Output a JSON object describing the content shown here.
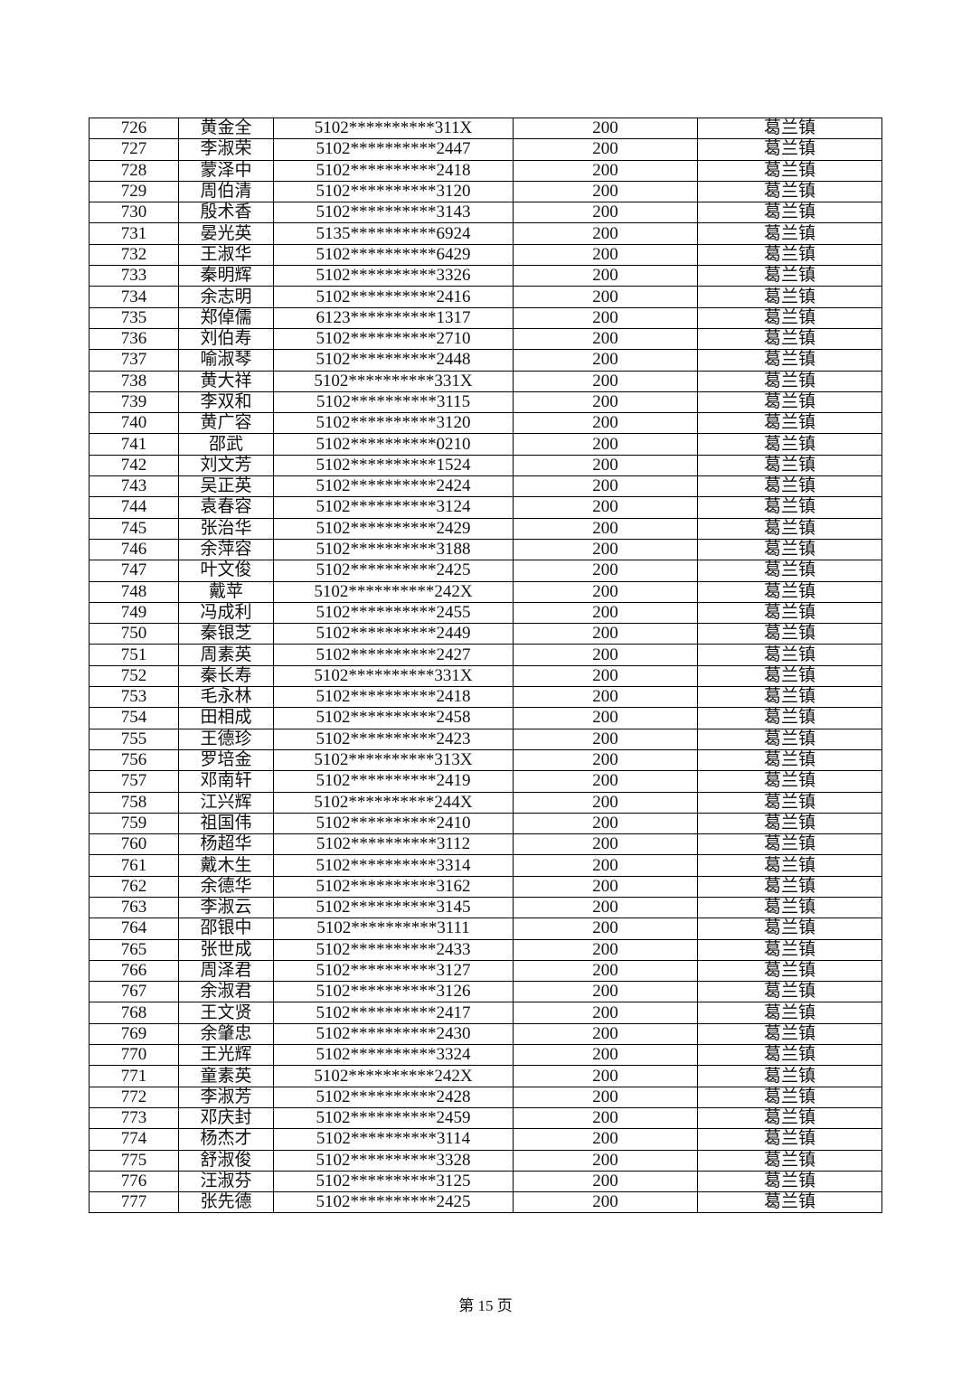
{
  "table": {
    "rows": [
      [
        "726",
        "黄金全",
        "5102**********311X",
        "200",
        "葛兰镇"
      ],
      [
        "727",
        "李淑荣",
        "5102**********2447",
        "200",
        "葛兰镇"
      ],
      [
        "728",
        "蒙泽中",
        "5102**********2418",
        "200",
        "葛兰镇"
      ],
      [
        "729",
        "周伯清",
        "5102**********3120",
        "200",
        "葛兰镇"
      ],
      [
        "730",
        "殷术香",
        "5102**********3143",
        "200",
        "葛兰镇"
      ],
      [
        "731",
        "晏光英",
        "5135**********6924",
        "200",
        "葛兰镇"
      ],
      [
        "732",
        "王淑华",
        "5102**********6429",
        "200",
        "葛兰镇"
      ],
      [
        "733",
        "秦明辉",
        "5102**********3326",
        "200",
        "葛兰镇"
      ],
      [
        "734",
        "余志明",
        "5102**********2416",
        "200",
        "葛兰镇"
      ],
      [
        "735",
        "郑倬儒",
        "6123**********1317",
        "200",
        "葛兰镇"
      ],
      [
        "736",
        "刘伯寿",
        "5102**********2710",
        "200",
        "葛兰镇"
      ],
      [
        "737",
        "喻淑琴",
        "5102**********2448",
        "200",
        "葛兰镇"
      ],
      [
        "738",
        "黄大祥",
        "5102**********331X",
        "200",
        "葛兰镇"
      ],
      [
        "739",
        "李双和",
        "5102**********3115",
        "200",
        "葛兰镇"
      ],
      [
        "740",
        "黄广容",
        "5102**********3120",
        "200",
        "葛兰镇"
      ],
      [
        "741",
        "邵武",
        "5102**********0210",
        "200",
        "葛兰镇"
      ],
      [
        "742",
        "刘文芳",
        "5102**********1524",
        "200",
        "葛兰镇"
      ],
      [
        "743",
        "吴正英",
        "5102**********2424",
        "200",
        "葛兰镇"
      ],
      [
        "744",
        "袁春容",
        "5102**********3124",
        "200",
        "葛兰镇"
      ],
      [
        "745",
        "张治华",
        "5102**********2429",
        "200",
        "葛兰镇"
      ],
      [
        "746",
        "余萍容",
        "5102**********3188",
        "200",
        "葛兰镇"
      ],
      [
        "747",
        "叶文俊",
        "5102**********2425",
        "200",
        "葛兰镇"
      ],
      [
        "748",
        "戴苹",
        "5102**********242X",
        "200",
        "葛兰镇"
      ],
      [
        "749",
        "冯成利",
        "5102**********2455",
        "200",
        "葛兰镇"
      ],
      [
        "750",
        "秦银芝",
        "5102**********2449",
        "200",
        "葛兰镇"
      ],
      [
        "751",
        "周素英",
        "5102**********2427",
        "200",
        "葛兰镇"
      ],
      [
        "752",
        "秦长寿",
        "5102**********331X",
        "200",
        "葛兰镇"
      ],
      [
        "753",
        "毛永林",
        "5102**********2418",
        "200",
        "葛兰镇"
      ],
      [
        "754",
        "田相成",
        "5102**********2458",
        "200",
        "葛兰镇"
      ],
      [
        "755",
        "王德珍",
        "5102**********2423",
        "200",
        "葛兰镇"
      ],
      [
        "756",
        "罗培金",
        "5102**********313X",
        "200",
        "葛兰镇"
      ],
      [
        "757",
        "邓南轩",
        "5102**********2419",
        "200",
        "葛兰镇"
      ],
      [
        "758",
        "江兴辉",
        "5102**********244X",
        "200",
        "葛兰镇"
      ],
      [
        "759",
        "祖国伟",
        "5102**********2410",
        "200",
        "葛兰镇"
      ],
      [
        "760",
        "杨超华",
        "5102**********3112",
        "200",
        "葛兰镇"
      ],
      [
        "761",
        "戴木生",
        "5102**********3314",
        "200",
        "葛兰镇"
      ],
      [
        "762",
        "余德华",
        "5102**********3162",
        "200",
        "葛兰镇"
      ],
      [
        "763",
        "李淑云",
        "5102**********3145",
        "200",
        "葛兰镇"
      ],
      [
        "764",
        "邵银中",
        "5102**********3111",
        "200",
        "葛兰镇"
      ],
      [
        "765",
        "张世成",
        "5102**********2433",
        "200",
        "葛兰镇"
      ],
      [
        "766",
        "周泽君",
        "5102**********3127",
        "200",
        "葛兰镇"
      ],
      [
        "767",
        "余淑君",
        "5102**********3126",
        "200",
        "葛兰镇"
      ],
      [
        "768",
        "王文贤",
        "5102**********2417",
        "200",
        "葛兰镇"
      ],
      [
        "769",
        "余肇忠",
        "5102**********2430",
        "200",
        "葛兰镇"
      ],
      [
        "770",
        "王光辉",
        "5102**********3324",
        "200",
        "葛兰镇"
      ],
      [
        "771",
        "童素英",
        "5102**********242X",
        "200",
        "葛兰镇"
      ],
      [
        "772",
        "李淑芳",
        "5102**********2428",
        "200",
        "葛兰镇"
      ],
      [
        "773",
        "邓庆封",
        "5102**********2459",
        "200",
        "葛兰镇"
      ],
      [
        "774",
        "杨杰才",
        "5102**********3114",
        "200",
        "葛兰镇"
      ],
      [
        "775",
        "舒淑俊",
        "5102**********3328",
        "200",
        "葛兰镇"
      ],
      [
        "776",
        "汪淑芬",
        "5102**********3125",
        "200",
        "葛兰镇"
      ],
      [
        "777",
        "张先德",
        "5102**********2425",
        "200",
        "葛兰镇"
      ]
    ]
  },
  "footer": {
    "page_label": "第 15 页"
  }
}
